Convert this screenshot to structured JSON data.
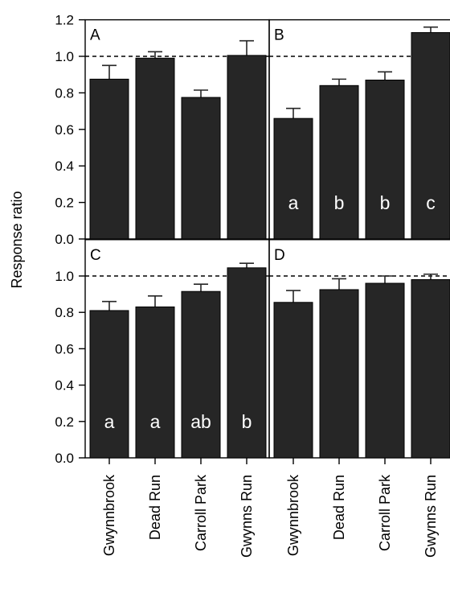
{
  "chart_data": {
    "type": "bar",
    "ylabel": "Response ratio",
    "categories": [
      "Gwynnbrook",
      "Dead Run",
      "Carroll Park",
      "Gwynns Run"
    ],
    "ylim": [
      0,
      1.2
    ],
    "yticks": [
      "0.0",
      "0.2",
      "0.4",
      "0.6",
      "0.8",
      "1.0",
      "1.2"
    ],
    "reference_line": 1.0,
    "bar_color": "#262626",
    "panels": [
      {
        "label": "A",
        "values": [
          0.875,
          0.99,
          0.775,
          1.005
        ],
        "errors": [
          0.075,
          0.035,
          0.04,
          0.08
        ],
        "letters": [
          "",
          "",
          "",
          ""
        ]
      },
      {
        "label": "B",
        "values": [
          0.66,
          0.84,
          0.87,
          1.13
        ],
        "errors": [
          0.055,
          0.035,
          0.045,
          0.03
        ],
        "letters": [
          "a",
          "b",
          "b",
          "c"
        ]
      },
      {
        "label": "C",
        "values": [
          0.81,
          0.83,
          0.915,
          1.045
        ],
        "errors": [
          0.05,
          0.06,
          0.04,
          0.025
        ],
        "letters": [
          "a",
          "a",
          "ab",
          "b"
        ]
      },
      {
        "label": "D",
        "values": [
          0.855,
          0.925,
          0.96,
          0.98
        ],
        "errors": [
          0.065,
          0.06,
          0.04,
          0.03
        ],
        "letters": [
          "",
          "",
          "",
          ""
        ]
      }
    ]
  }
}
